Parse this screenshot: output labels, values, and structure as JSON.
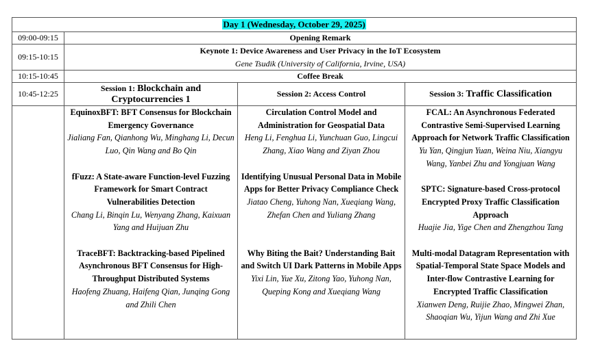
{
  "day_title": "Day 1 (Wednesday, October 29, 2025)",
  "highlight_color": "#18f0f0",
  "rows": [
    {
      "time": "09:00-09:15",
      "title": "Opening Remark"
    },
    {
      "time": "09:15-10:15",
      "title": "Keynote 1: Device Awareness and User Privacy in the IoT Ecosystem",
      "speaker": "Gene Tsudik (University of California, Irvine, USA)"
    },
    {
      "time": "10:15-10:45",
      "title": "Coffee Break"
    }
  ],
  "session_time": "10:45-12:25",
  "sessions": [
    {
      "prefix": "Session 1: ",
      "name": "Blockchain and Cryptocurrencies 1",
      "papers": [
        {
          "title": "EquinoxBFT: BFT Consensus for Blockchain Emergency Governance",
          "authors": "Jialiang Fan, Qianhong Wu, Minghang Li, Decun Luo, Qin Wang and Bo Qin"
        },
        {
          "title": "fFuzz: A State-aware Function-level Fuzzing Framework for Smart Contract Vulnerabilities Detection",
          "authors": "Chang Li, Binqin Lu, Wenyang Zhang, Kaixuan Yang and Huijuan Zhu"
        },
        {
          "title": "TraceBFT: Backtracking-based Pipelined Asynchronous BFT Consensus for High-Throughput Distributed Systems",
          "authors": "Haofeng Zhuang, Haifeng Qian, Junqing Gong and Zhili Chen"
        }
      ]
    },
    {
      "prefix": "Session 2: ",
      "name": "Access Control",
      "papers": [
        {
          "title": "Circulation Control Model and Administration for Geospatial Data",
          "authors": "Heng Li, Fenghua Li, Yunchuan Guo, Lingcui Zhang, Xiao Wang and Ziyan Zhou"
        },
        {
          "title": "Identifying Unusual Personal Data in Mobile Apps for Better Privacy Compliance Check",
          "authors": "Jiatao Cheng, Yuhong Nan, Xueqiang Wang, Zhefan Chen and Yuliang Zhang"
        },
        {
          "title": "Why Biting the Bait? Understanding Bait and Switch UI Dark Patterns in Mobile Apps",
          "authors": "Yixi Lin, Yue Xu, Zitong Yao, Yuhong Nan, Queping Kong and Xueqiang Wang"
        }
      ]
    },
    {
      "prefix": "Session 3: ",
      "name": "Traffic Classification",
      "papers": [
        {
          "title": "FCAL: An Asynchronous Federated Contrastive Semi-Supervised Learning Approach for Network Traffic Classification",
          "authors": "Yu Yan, Qingjun Yuan, Weina Niu, Xiangyu Wang, Yanbei Zhu and Yongjuan Wang"
        },
        {
          "title": "SPTC: Signature-based Cross-protocol Encrypted Proxy Traffic Classification Approach",
          "authors": "Huajie Jia, Yige Chen and Zhengzhou Tang"
        },
        {
          "title": "Multi-modal Datagram Representation with Spatial-Temporal State Space Models and Inter-flow Contrastive Learning for Encrypted Traffic Classification",
          "authors": "Xianwen Deng, Ruijie Zhao, Mingwei Zhan, Shaoqian Wu, Yijun Wang and Zhi Xue"
        }
      ]
    }
  ]
}
